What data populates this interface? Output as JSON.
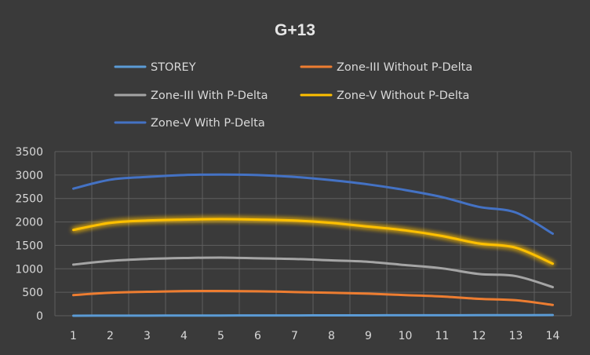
{
  "chart_data": {
    "type": "line",
    "title": "G+13",
    "xlabel": "",
    "ylabel": "",
    "x": [
      1,
      2,
      3,
      4,
      5,
      6,
      7,
      8,
      9,
      10,
      11,
      12,
      13,
      14
    ],
    "ylim": [
      0,
      3500
    ],
    "yticks": [
      0,
      500,
      1000,
      1500,
      2000,
      2500,
      3000,
      3500
    ],
    "grid": true,
    "legend_position": "top",
    "series": [
      {
        "name": "STOREY",
        "color": "#5b9bd5",
        "glow": false,
        "values": [
          1,
          2,
          3,
          4,
          5,
          6,
          7,
          8,
          9,
          10,
          11,
          12,
          13,
          14
        ]
      },
      {
        "name": "Zone-III Without P-Delta",
        "color": "#ed7d31",
        "glow": false,
        "values": [
          440,
          490,
          510,
          525,
          528,
          522,
          505,
          490,
          470,
          440,
          410,
          360,
          330,
          230
        ]
      },
      {
        "name": "Zone-III With P-Delta",
        "color": "#a5a5a5",
        "glow": false,
        "values": [
          1090,
          1170,
          1210,
          1230,
          1240,
          1225,
          1210,
          1180,
          1150,
          1080,
          1010,
          890,
          845,
          610
        ]
      },
      {
        "name": "Zone-V Without P-Delta",
        "color": "#ffc000",
        "glow": true,
        "values": [
          1830,
          1980,
          2030,
          2050,
          2060,
          2050,
          2030,
          1980,
          1900,
          1820,
          1700,
          1540,
          1450,
          1110
        ]
      },
      {
        "name": "Zone-V With P-Delta",
        "color": "#4472c4",
        "glow": false,
        "values": [
          2710,
          2900,
          2960,
          3000,
          3010,
          3000,
          2960,
          2890,
          2800,
          2680,
          2530,
          2320,
          2200,
          1750
        ]
      }
    ]
  }
}
